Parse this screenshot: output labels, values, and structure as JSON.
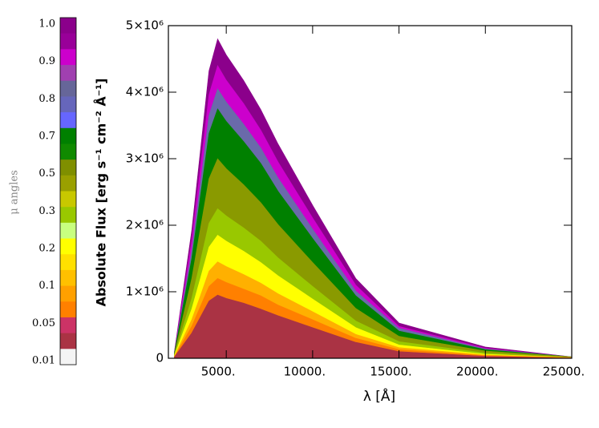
{
  "chart_data": {
    "type": "area",
    "xlabel": "λ [Å]",
    "ylabel": "Absolute Flux [erg s⁻¹ cm⁻² Å⁻¹]",
    "x": [
      2000,
      3000,
      3500,
      4000,
      4500,
      5000,
      6000,
      7000,
      8000,
      10000,
      12500,
      15000,
      20000,
      25000
    ],
    "xlim": [
      1650,
      25000
    ],
    "xticks": [
      {
        "value": 5000,
        "label": "5000."
      },
      {
        "value": 10000,
        "label": "10000."
      },
      {
        "value": 15000,
        "label": "15000."
      },
      {
        "value": 20000,
        "label": "20000."
      },
      {
        "value": 25000,
        "label": "25000."
      }
    ],
    "ylim": [
      0,
      5000000
    ],
    "yticks": [
      0,
      {
        "value": 1000000,
        "label": "1×10⁶"
      },
      {
        "value": 2000000,
        "label": "2×10⁶"
      },
      {
        "value": 3000000,
        "label": "3×10⁶"
      },
      {
        "value": 4000000,
        "label": "4×10⁶"
      },
      {
        "value": 5000000,
        "label": "5×10⁶"
      }
    ],
    "series": [
      {
        "color": "#8b008b",
        "values": [
          100000.0,
          1920000.0,
          3120000.0,
          4320000.0,
          4800000.0,
          4560000.0,
          4180000.0,
          3740000.0,
          3220000.0,
          2300000.0,
          1200000.0,
          530000.0,
          170000.0,
          20000.0
        ]
      },
      {
        "color": "#cc00cc",
        "values": [
          90000.0,
          1760000.0,
          2860000.0,
          3960000.0,
          4400000.0,
          4180000.0,
          3830000.0,
          3430000.0,
          2950000.0,
          2110000.0,
          1100000.0,
          480000.0,
          150000.0,
          20000.0
        ]
      },
      {
        "color": "#6a6aaa",
        "values": [
          80000.0,
          1620000.0,
          2630000.0,
          3650000.0,
          4050000.0,
          3850000.0,
          3520000.0,
          3160000.0,
          2710000.0,
          1940000.0,
          1010000.0,
          450000.0,
          140000.0,
          20000.0
        ]
      },
      {
        "color": "#008000",
        "values": [
          80000.0,
          1500000.0,
          2440000.0,
          3380000.0,
          3750000.0,
          3560000.0,
          3260000.0,
          2930000.0,
          2510000.0,
          1800000.0,
          940000.0,
          410000.0,
          130000.0,
          20000.0
        ]
      },
      {
        "color": "#8a9a00",
        "values": [
          60000.0,
          1200000.0,
          1950000.0,
          2700000.0,
          3000000.0,
          2850000.0,
          2610000.0,
          2340000.0,
          2010000.0,
          1440000.0,
          750000.0,
          330000.0,
          110000.0,
          20000.0
        ]
      },
      {
        "color": "#99c800",
        "values": [
          50000.0,
          900000.0,
          1460000.0,
          2030000.0,
          2250000.0,
          2140000.0,
          1960000.0,
          1760000.0,
          1510000.0,
          1080000.0,
          560000.0,
          250000.0,
          80000.0,
          10000.0
        ]
      },
      {
        "color": "#ffff00",
        "values": [
          40000.0,
          740000.0,
          1200000.0,
          1670000.0,
          1850000.0,
          1760000.0,
          1610000.0,
          1440000.0,
          1240000.0,
          890000.0,
          460000.0,
          200000.0,
          60000.0,
          10000.0
        ]
      },
      {
        "color": "#ffb000",
        "values": [
          30000.0,
          580000.0,
          940000.0,
          1310000.0,
          1450000.0,
          1380000.0,
          1260000.0,
          1130000.0,
          970000.0,
          700000.0,
          360000.0,
          160000.0,
          50000.0,
          10000.0
        ]
      },
      {
        "color": "#ff8000",
        "values": [
          20000.0,
          480000.0,
          780000.0,
          1080000.0,
          1200000.0,
          1140000.0,
          1040000.0,
          940000.0,
          800000.0,
          580000.0,
          300000.0,
          130000.0,
          40000.0,
          10000.0
        ]
      },
      {
        "color": "#aa3344",
        "values": [
          20000.0,
          380000.0,
          620000.0,
          860000.0,
          950000.0,
          900000.0,
          830000.0,
          740000.0,
          640000.0,
          460000.0,
          240000.0,
          100000.0,
          30000.0,
          0
        ]
      }
    ],
    "colorbar": {
      "label": "μ angles",
      "colors": [
        "#8b008b",
        "#990099",
        "#cc00cc",
        "#a040b0",
        "#666699",
        "#6666bb",
        "#6666ff",
        "#008000",
        "#108a00",
        "#7f8f00",
        "#9aa000",
        "#c8c800",
        "#99c800",
        "#c8ff80",
        "#ffff00",
        "#ffe000",
        "#ffc000",
        "#ffa000",
        "#ff8000",
        "#cc3366",
        "#aa3344",
        "#f4f4f4"
      ],
      "ticks": [
        {
          "value": 1.0,
          "label": "1.0"
        },
        0.9,
        0.8,
        0.7,
        0.5,
        0.3,
        0.2,
        0.1,
        0.05,
        0.01
      ]
    }
  }
}
